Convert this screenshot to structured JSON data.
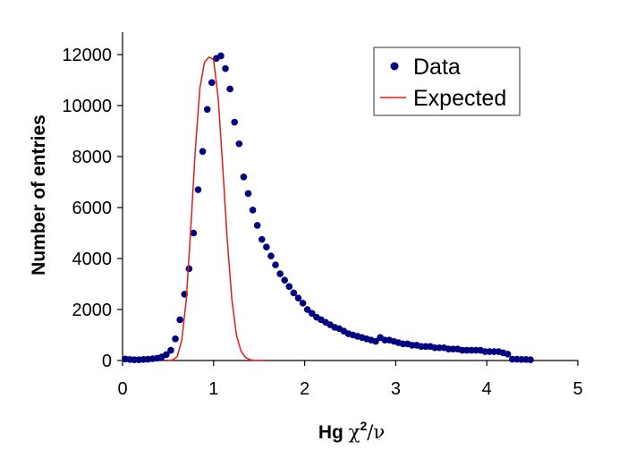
{
  "chart_data": {
    "type": "scatter",
    "xlabel": {
      "main": "Hg ",
      "symbol": "χ",
      "sup": "2",
      "tail": "/ν"
    },
    "ylabel": "Number of entries",
    "xlim": [
      0,
      5
    ],
    "ylim": [
      0,
      12000
    ],
    "x_ticks": [
      "0",
      "1",
      "2",
      "3",
      "4",
      "5"
    ],
    "y_ticks": [
      "0",
      "2000",
      "4000",
      "6000",
      "8000",
      "10000",
      "12000"
    ],
    "grid": false,
    "legend_position": "top-right",
    "colors": {
      "data": "#000080",
      "expected": "#e01b1b"
    },
    "series": [
      {
        "name": "Data",
        "style": "markers",
        "x": [
          0.03,
          0.08,
          0.13,
          0.18,
          0.23,
          0.28,
          0.33,
          0.38,
          0.43,
          0.48,
          0.53,
          0.58,
          0.63,
          0.68,
          0.73,
          0.78,
          0.83,
          0.88,
          0.93,
          0.98,
          1.03,
          1.08,
          1.13,
          1.18,
          1.23,
          1.28,
          1.33,
          1.38,
          1.43,
          1.48,
          1.53,
          1.58,
          1.63,
          1.68,
          1.73,
          1.78,
          1.83,
          1.88,
          1.93,
          1.98,
          2.03,
          2.08,
          2.13,
          2.18,
          2.23,
          2.28,
          2.33,
          2.38,
          2.43,
          2.48,
          2.53,
          2.58,
          2.63,
          2.68,
          2.73,
          2.78,
          2.83,
          2.88,
          2.93,
          2.98,
          3.03,
          3.08,
          3.13,
          3.18,
          3.23,
          3.28,
          3.33,
          3.38,
          3.43,
          3.48,
          3.53,
          3.58,
          3.63,
          3.68,
          3.73,
          3.78,
          3.83,
          3.88,
          3.93,
          3.98,
          4.03,
          4.08,
          4.13,
          4.18,
          4.23,
          4.28,
          4.33,
          4.38,
          4.43,
          4.48
        ],
        "y": [
          60,
          40,
          30,
          30,
          40,
          50,
          70,
          90,
          140,
          230,
          400,
          850,
          1600,
          2600,
          3600,
          5000,
          6700,
          8200,
          9850,
          10900,
          11850,
          11950,
          11450,
          10650,
          9350,
          8500,
          7200,
          6550,
          5900,
          5300,
          4750,
          4450,
          4100,
          3750,
          3400,
          3150,
          2900,
          2650,
          2450,
          2250,
          2000,
          1850,
          1700,
          1600,
          1500,
          1400,
          1300,
          1250,
          1150,
          1050,
          1000,
          950,
          900,
          850,
          800,
          750,
          900,
          800,
          800,
          750,
          700,
          650,
          650,
          600,
          600,
          550,
          550,
          550,
          500,
          500,
          500,
          450,
          450,
          450,
          400,
          400,
          400,
          400,
          400,
          350,
          350,
          350,
          350,
          300,
          250,
          50,
          50,
          40,
          40,
          30
        ]
      },
      {
        "name": "Expected",
        "style": "line",
        "x": [
          0.5,
          0.55,
          0.6,
          0.65,
          0.7,
          0.75,
          0.8,
          0.85,
          0.9,
          0.95,
          1.0,
          1.05,
          1.1,
          1.15,
          1.2,
          1.25,
          1.3,
          1.35,
          1.4,
          1.45,
          1.5,
          1.55
        ],
        "y": [
          0,
          20,
          150,
          800,
          2400,
          5200,
          8300,
          10700,
          11700,
          11900,
          11800,
          10300,
          7600,
          4700,
          2400,
          1000,
          380,
          120,
          30,
          5,
          0,
          0
        ]
      }
    ]
  }
}
